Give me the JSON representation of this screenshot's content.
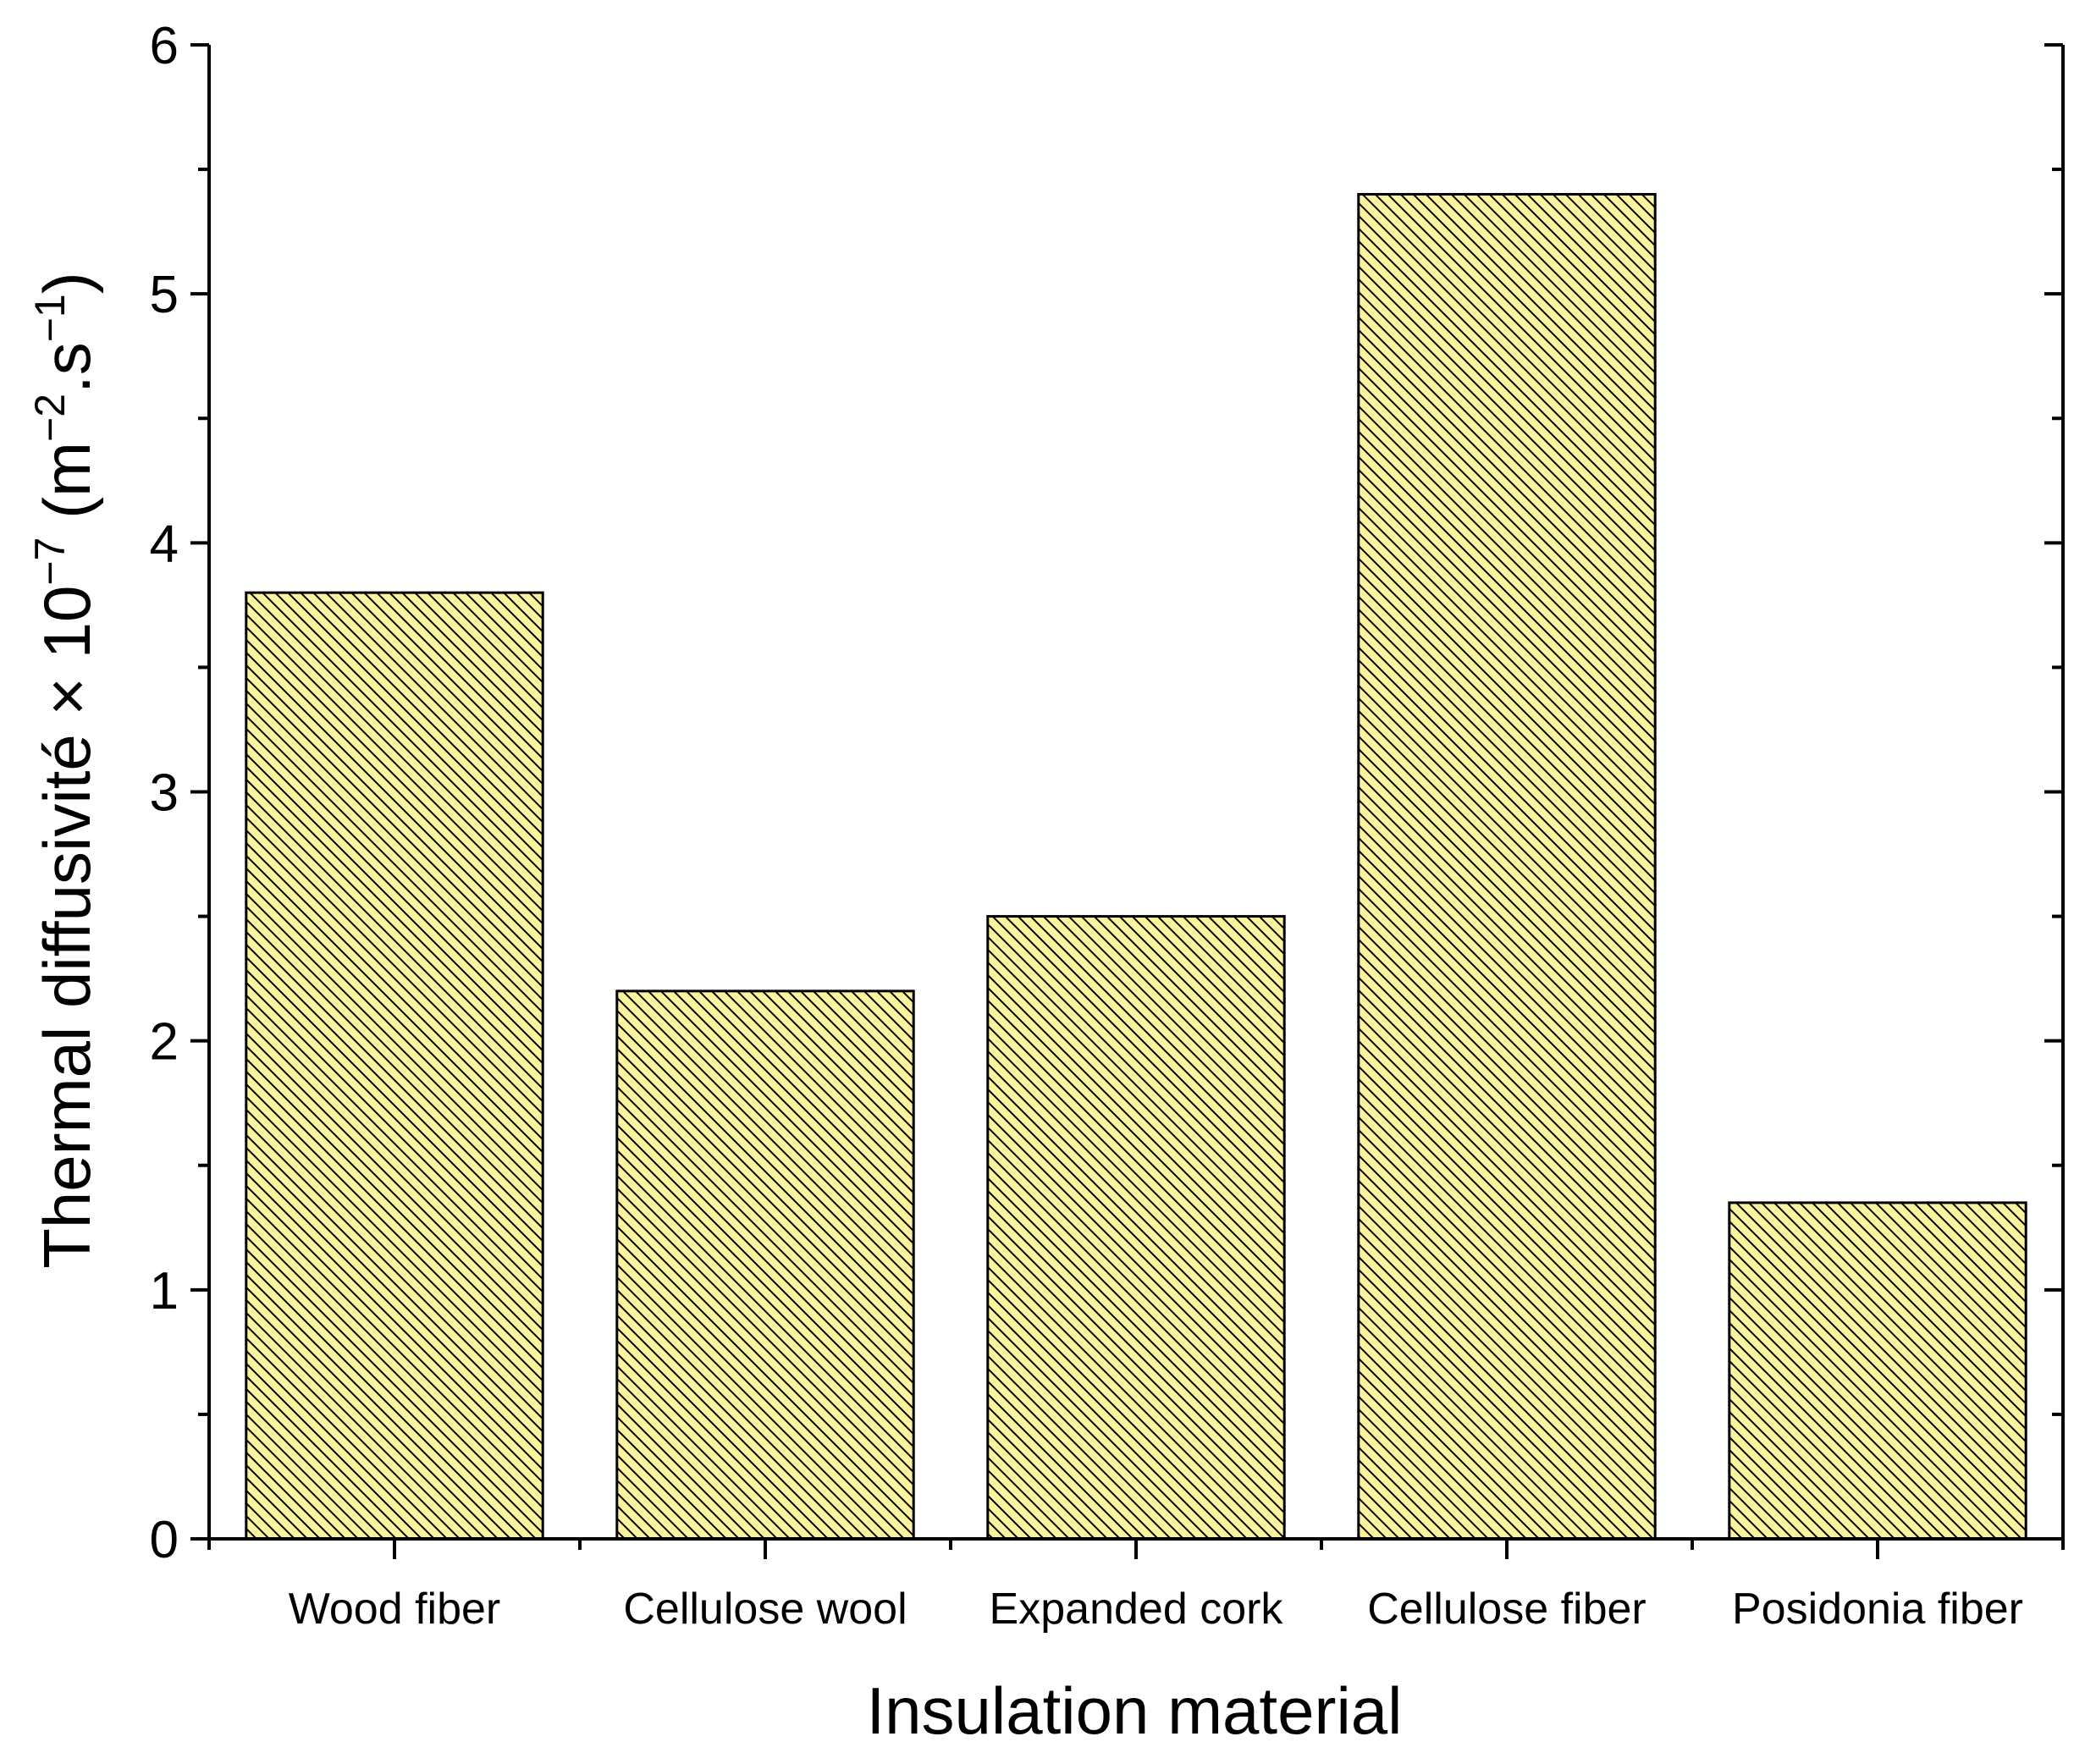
{
  "chart_data": {
    "type": "bar",
    "title": "",
    "xlabel": "Insulation material",
    "ylabel": {
      "main": "Thermal diffusivité × 10",
      "exp": "−7",
      "unit_open": " (m",
      "unit_exp1": "−2",
      "unit_mid": ".s",
      "unit_exp2": "−1",
      "unit_close": ")"
    },
    "categories": [
      "Wood fiber",
      "Cellulose wool",
      "Expanded cork",
      "Cellulose fiber",
      "Posidonia fiber"
    ],
    "values": [
      3.8,
      2.2,
      2.5,
      5.4,
      1.35
    ],
    "ylim": [
      0,
      6
    ],
    "yticks": [
      "0",
      "1",
      "2",
      "3",
      "4",
      "5",
      "6"
    ],
    "grid": false,
    "legend": "none",
    "bar_fill": "#fbf49c",
    "bar_edge": "#000000",
    "hatch": "diagonal"
  }
}
